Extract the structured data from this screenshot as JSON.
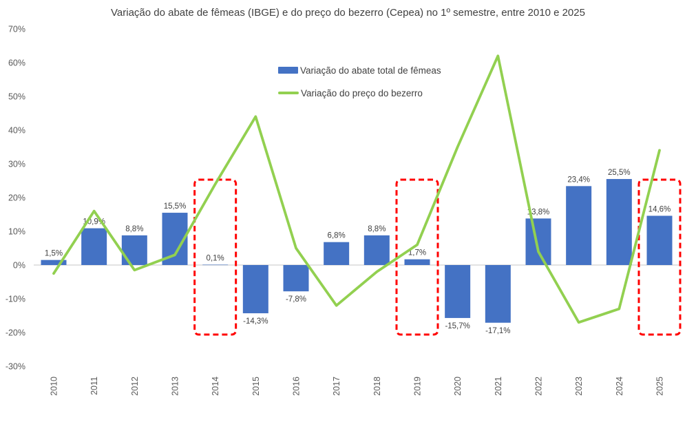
{
  "chart_data": {
    "type": "bar",
    "combo": "bar+line",
    "title": "Variação do abate de fêmeas (IBGE) e do preço do bezerro (Cepea) no 1º semestre, entre 2010 e 2025",
    "categories": [
      "2010",
      "2011",
      "2012",
      "2013",
      "2014",
      "2015",
      "2016",
      "2017",
      "2018",
      "2019",
      "2020",
      "2021",
      "2022",
      "2023",
      "2024",
      "2025"
    ],
    "series": [
      {
        "name": "Variação do abate total de fêmeas",
        "type": "bar",
        "color": "#4472C4",
        "values": [
          1.5,
          10.9,
          8.8,
          15.5,
          0.1,
          -14.3,
          -7.8,
          6.8,
          8.8,
          1.7,
          -15.7,
          -17.1,
          13.8,
          23.4,
          25.5,
          14.6
        ],
        "labels": [
          "1,5%",
          "10,9%",
          "8,8%",
          "15,5%",
          "0,1%",
          "-14,3%",
          "-7,8%",
          "6,8%",
          "8,8%",
          "1,7%",
          "-15,7%",
          "-17,1%",
          "13,8%",
          "23,4%",
          "25,5%",
          "14,6%"
        ]
      },
      {
        "name": "Variação do preço do bezerro",
        "type": "line",
        "color": "#92D050",
        "values": [
          -2.5,
          16,
          -1.5,
          3,
          24,
          44,
          5,
          -12,
          -2,
          6,
          35,
          62,
          4,
          -17,
          -13,
          34
        ]
      }
    ],
    "highlighted_categories": [
      "2014",
      "2019",
      "2025"
    ],
    "highlight_color": "#FF0000",
    "y_axis": {
      "min": -30,
      "max": 70,
      "step": 10,
      "tick_values": [
        70,
        60,
        50,
        40,
        30,
        20,
        10,
        0,
        -10,
        -20,
        -30
      ],
      "tick_labels": [
        "70%",
        "60%",
        "50%",
        "40%",
        "30%",
        "20%",
        "10%",
        "0%",
        "-10%",
        "-20%",
        "-30%"
      ]
    },
    "grid": false,
    "legend_position": "top-center",
    "axis_line_color": "#D9D9D9",
    "text_colors": {
      "title": "#404040",
      "data_labels": "#404040",
      "axis_labels": "#595959"
    }
  }
}
